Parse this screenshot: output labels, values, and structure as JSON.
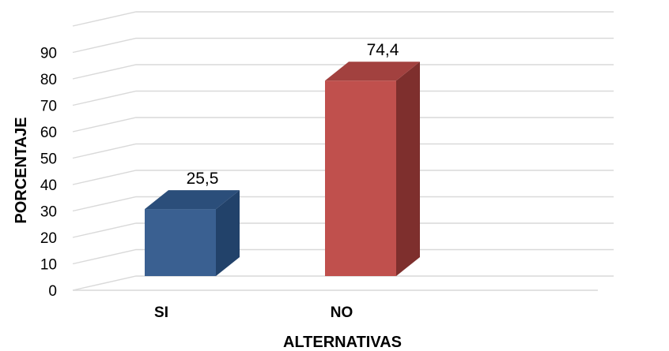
{
  "chart_data": {
    "type": "bar",
    "categories": [
      "SI",
      "NO"
    ],
    "values": [
      25.5,
      74.4
    ],
    "data_labels": [
      "25,5",
      "74,4"
    ],
    "xlabel": "ALTERNATIVAS",
    "ylabel": "PORCENTAJE",
    "ylim": [
      0,
      100
    ],
    "yticks": [
      0,
      10,
      20,
      30,
      40,
      50,
      60,
      70,
      80,
      90
    ],
    "ytick_labels": [
      "0",
      "10",
      "20",
      "30",
      "40",
      "50",
      "60",
      "70",
      "80",
      "90"
    ],
    "grid": true,
    "style": "3d-column",
    "colors": [
      "#3A6091",
      "#C0504D"
    ]
  }
}
